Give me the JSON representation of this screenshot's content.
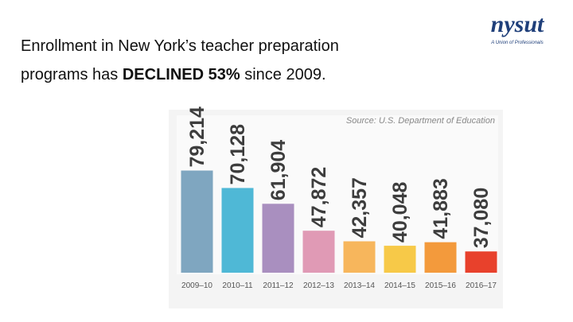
{
  "slide": {
    "headline": [
      "Enrollment in New York’s  teacher preparation",
      "programs has ",
      "DECLINED 53%",
      " since 2009."
    ],
    "logo": "nysut",
    "tagline": "A Union of Professionals"
  },
  "chart_data": {
    "type": "bar",
    "source": "Source: U.S. Department of Education",
    "categories": [
      "2009–10",
      "2010–11",
      "2011–12",
      "2012–13",
      "2013–14",
      "2014–15",
      "2015–16",
      "2016–17"
    ],
    "values": [
      79214,
      70128,
      61904,
      47872,
      42357,
      40048,
      41883,
      37080
    ],
    "value_labels": [
      "79,214",
      "70,128",
      "61,904",
      "47,872",
      "42,357",
      "40,048",
      "41,883",
      "37,080"
    ],
    "colors": [
      "#7fa6c0",
      "#4fb8d6",
      "#a98fbf",
      "#e09ab5",
      "#f7b65c",
      "#f7c948",
      "#f39a3c",
      "#e8412c"
    ],
    "ylim": [
      26000,
      108000
    ]
  }
}
